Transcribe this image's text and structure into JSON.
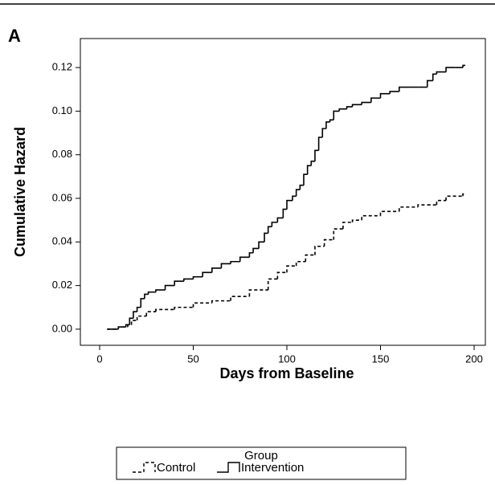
{
  "chart_data": {
    "type": "step",
    "panel_label": "A",
    "xlabel": "Days from Baseline",
    "ylabel": "Cumulative Hazard",
    "xlim": [
      -10.3,
      206
    ],
    "ylim": [
      -0.0074,
      0.1333
    ],
    "xticks": [
      0,
      50,
      100,
      150,
      200
    ],
    "yticks": [
      {
        "value": 0,
        "label": "0.00"
      },
      {
        "value": 0.02,
        "label": "0.02"
      },
      {
        "value": 0.04,
        "label": "0.04"
      },
      {
        "value": 0.06,
        "label": "0.06"
      },
      {
        "value": 0.08,
        "label": "0.08"
      },
      {
        "value": 0.1,
        "label": "0.10"
      },
      {
        "value": 0.12,
        "label": "0.12"
      }
    ],
    "grid": false,
    "legend_title": "Group",
    "legend": "bottom",
    "series": [
      {
        "name": "Control",
        "color": "#000000",
        "dash": "4,3",
        "x": [
          4,
          10,
          15,
          17,
          20,
          25,
          30,
          40,
          50,
          60,
          70,
          80,
          90,
          95,
          100,
          105,
          110,
          115,
          120,
          125,
          130,
          135,
          140,
          150,
          160,
          170,
          175,
          180,
          185,
          194
        ],
        "values": [
          0,
          0.001,
          0.002,
          0.004,
          0.006,
          0.008,
          0.009,
          0.01,
          0.012,
          0.013,
          0.015,
          0.018,
          0.023,
          0.026,
          0.029,
          0.031,
          0.034,
          0.038,
          0.041,
          0.046,
          0.049,
          0.05,
          0.052,
          0.054,
          0.056,
          0.057,
          0.057,
          0.059,
          0.061,
          0.062
        ]
      },
      {
        "name": "Intervention",
        "color": "#000000",
        "dash": "none",
        "x": [
          4,
          10,
          14,
          16,
          18,
          20,
          22,
          24,
          26,
          30,
          35,
          40,
          45,
          50,
          55,
          60,
          65,
          70,
          75,
          80,
          82,
          85,
          88,
          90,
          92,
          95,
          98,
          100,
          103,
          105,
          107,
          109,
          111,
          113,
          115,
          117,
          119,
          121,
          123,
          125,
          128,
          132,
          135,
          140,
          145,
          150,
          155,
          160,
          165,
          170,
          175,
          178,
          180,
          185,
          190,
          194
        ],
        "values": [
          0,
          0.001,
          0.002,
          0.005,
          0.008,
          0.01,
          0.014,
          0.016,
          0.017,
          0.018,
          0.02,
          0.022,
          0.023,
          0.024,
          0.026,
          0.028,
          0.03,
          0.031,
          0.033,
          0.035,
          0.037,
          0.04,
          0.044,
          0.047,
          0.049,
          0.051,
          0.055,
          0.059,
          0.061,
          0.064,
          0.066,
          0.071,
          0.075,
          0.077,
          0.082,
          0.088,
          0.092,
          0.095,
          0.096,
          0.1,
          0.101,
          0.102,
          0.103,
          0.104,
          0.106,
          0.108,
          0.109,
          0.111,
          0.111,
          0.111,
          0.114,
          0.117,
          0.118,
          0.12,
          0.12,
          0.121
        ]
      }
    ]
  }
}
